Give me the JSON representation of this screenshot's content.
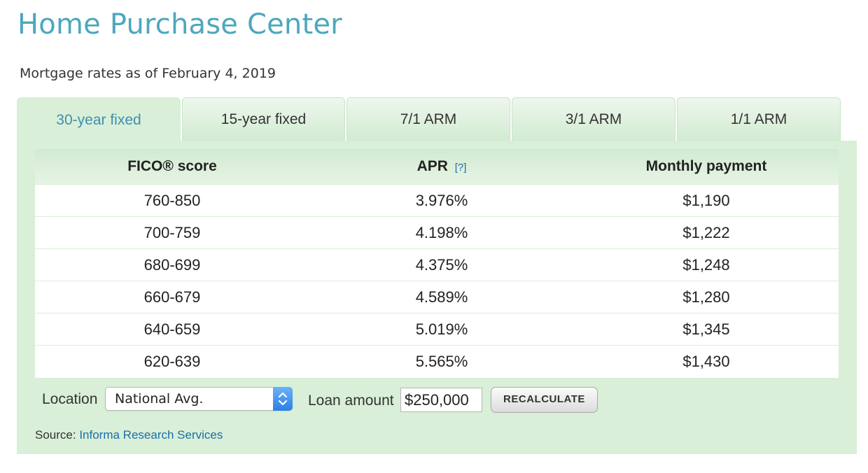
{
  "page": {
    "title": "Home Purchase Center",
    "rates_date": "Mortgage rates as of February 4, 2019"
  },
  "tabs": [
    {
      "label": "30-year fixed",
      "active": true
    },
    {
      "label": "15-year fixed",
      "active": false
    },
    {
      "label": "7/1 ARM",
      "active": false
    },
    {
      "label": "3/1 ARM",
      "active": false
    },
    {
      "label": "1/1 ARM",
      "active": false
    }
  ],
  "table": {
    "headers": {
      "fico": "FICO® score",
      "apr": "APR",
      "apr_help": "[?]",
      "payment": "Monthly payment"
    },
    "rows": [
      {
        "fico": "760-850",
        "apr": "3.976%",
        "payment": "$1,190"
      },
      {
        "fico": "700-759",
        "apr": "4.198%",
        "payment": "$1,222"
      },
      {
        "fico": "680-699",
        "apr": "4.375%",
        "payment": "$1,248"
      },
      {
        "fico": "660-679",
        "apr": "4.589%",
        "payment": "$1,280"
      },
      {
        "fico": "640-659",
        "apr": "5.019%",
        "payment": "$1,345"
      },
      {
        "fico": "620-639",
        "apr": "5.565%",
        "payment": "$1,430"
      }
    ]
  },
  "controls": {
    "location_label": "Location",
    "location_value": "National Avg.",
    "loan_label": "Loan amount",
    "loan_value": "$250,000",
    "recalculate_label": "RECALCULATE"
  },
  "source": {
    "label": "Source:",
    "link_text": "Informa Research Services"
  },
  "colors": {
    "title": "#4ca7bd",
    "panel": "#d9efd8",
    "link": "#1a6fa8",
    "active_tab_text": "#3e8fb0"
  }
}
